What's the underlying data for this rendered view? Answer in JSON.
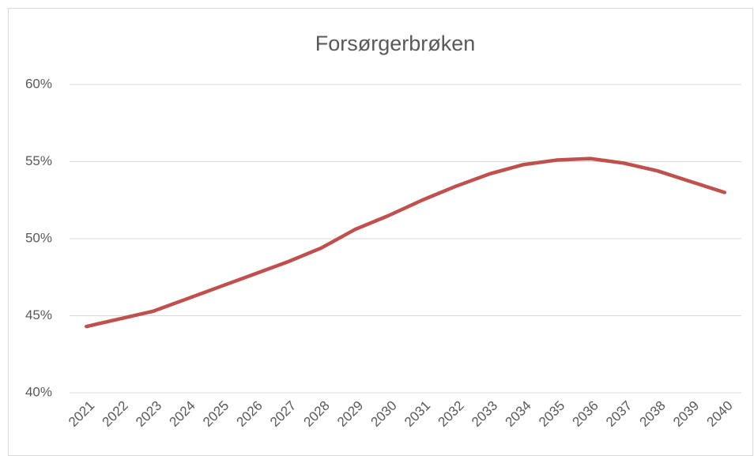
{
  "chart_data": {
    "type": "line",
    "title": "Forsørgerbrøken",
    "categories": [
      "2021",
      "2022",
      "2023",
      "2024",
      "2025",
      "2026",
      "2027",
      "2028",
      "2029",
      "2030",
      "2031",
      "2032",
      "2033",
      "2034",
      "2035",
      "2036",
      "2037",
      "2038",
      "2039",
      "2040"
    ],
    "series": [
      {
        "name": "Forsørgerbrøken",
        "color": "#c0504d",
        "values": [
          44.3,
          44.8,
          45.3,
          46.1,
          46.9,
          47.7,
          48.5,
          49.4,
          50.6,
          51.5,
          52.5,
          53.4,
          54.2,
          54.8,
          55.1,
          55.2,
          54.9,
          54.4,
          53.7,
          53.0
        ]
      }
    ],
    "ylim": [
      40,
      60
    ],
    "yticks": [
      {
        "value": 40,
        "label": "40%"
      },
      {
        "value": 45,
        "label": "45%"
      },
      {
        "value": 50,
        "label": "50%"
      },
      {
        "value": 55,
        "label": "55%"
      },
      {
        "value": 60,
        "label": "60%"
      }
    ],
    "grid": true
  }
}
